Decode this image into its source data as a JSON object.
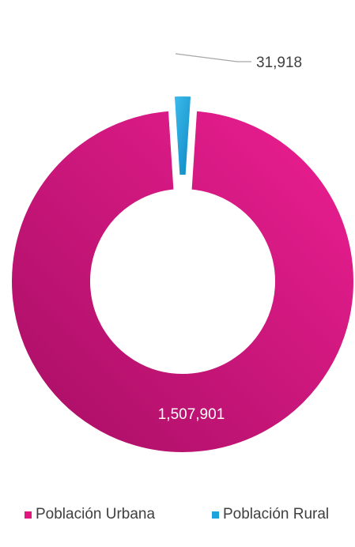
{
  "chart_data": {
    "type": "pie",
    "variant": "donut",
    "categories": [
      "Población Urbana",
      "Población Rural"
    ],
    "values": [
      1507901,
      31918
    ],
    "value_labels": [
      "1,507,901",
      "31,918"
    ],
    "colors": [
      "#e0187f",
      "#1fa3dd"
    ],
    "exploded": [
      false,
      true
    ],
    "legend": "bottom"
  }
}
